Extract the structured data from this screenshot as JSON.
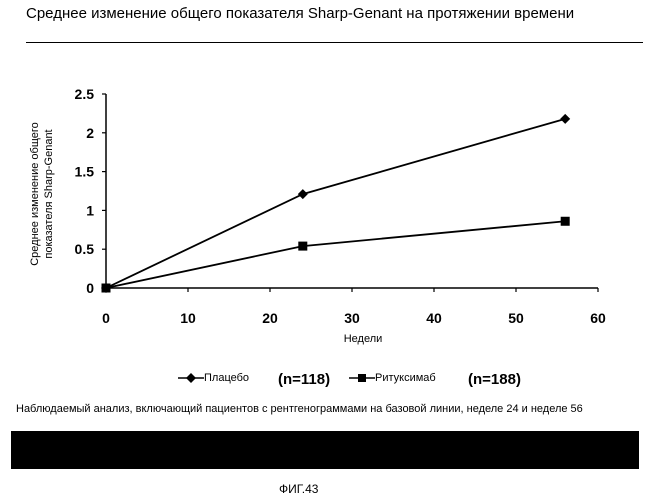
{
  "header": {
    "title": "Среднее изменение общего показателя Sharp-Genant на протяжении времени"
  },
  "chart_data": {
    "type": "line",
    "xlabel": "Недели",
    "ylabel_lines": [
      "Среднее изменение общего",
      "показателя Sharp-Genant"
    ],
    "xlim": [
      0,
      60
    ],
    "ylim": [
      0,
      2.5
    ],
    "x_ticks": [
      "0",
      "10",
      "20",
      "30",
      "40",
      "50",
      "60"
    ],
    "y_ticks": [
      "0",
      "0.5",
      "1",
      "1.5",
      "2",
      "2.5"
    ],
    "grid": false,
    "series": [
      {
        "name": "Плацебо",
        "marker": "diamond",
        "x": [
          0,
          24,
          56
        ],
        "y": [
          0,
          1.21,
          2.18
        ]
      },
      {
        "name": "Ритуксимаб",
        "marker": "square",
        "x": [
          0,
          24,
          56
        ],
        "y": [
          0,
          0.54,
          0.86
        ]
      }
    ],
    "legend_position": "bottom",
    "legend_counts": [
      "(n=118)",
      "(n=188)"
    ]
  },
  "footer": {
    "note": "Наблюдаемый анализ, включающий пациентов с рентгенограммами на базовой линии, неделе 24 и неделе 56",
    "figure_label": "ФИГ.43"
  }
}
